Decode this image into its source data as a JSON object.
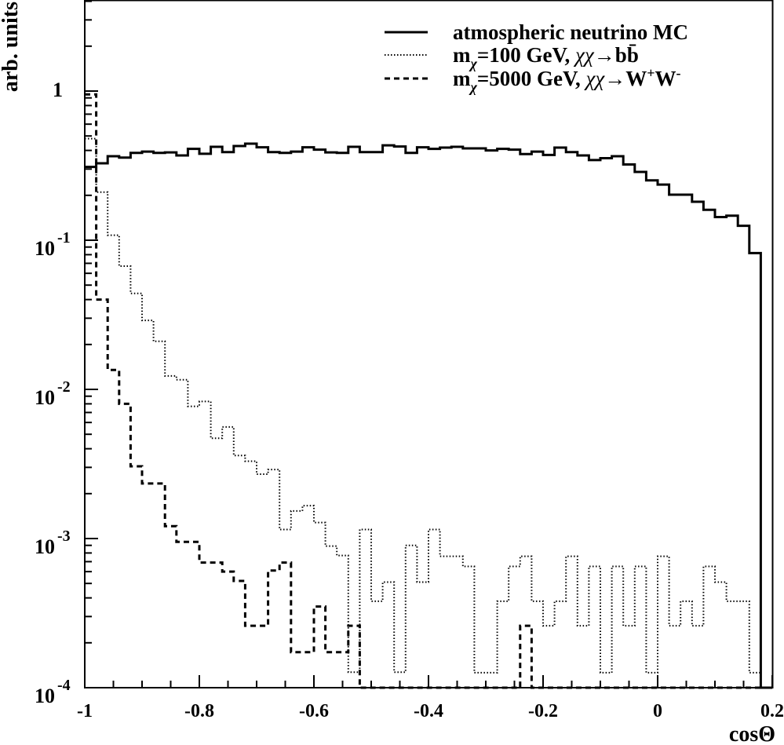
{
  "chart_data": {
    "type": "histogram",
    "title": "",
    "xlabel": "cosΘ",
    "ylabel": "arb. units",
    "xlim": [
      -1,
      0.2
    ],
    "ylim": [
      0.0001,
      4.0
    ],
    "yscale": "log",
    "bin_width": 0.02,
    "bin_start": -1,
    "x_tick_labels": [
      "-1",
      "-0.8",
      "-0.6",
      "-0.4",
      "-0.2",
      "0",
      "0.2"
    ],
    "x_tick_values": [
      -1,
      -0.8,
      -0.6,
      -0.4,
      -0.2,
      0,
      0.2
    ],
    "y_tick_labels": [
      {
        "value": 1,
        "base": "1",
        "exp": ""
      },
      {
        "value": 0.1,
        "base": "10",
        "exp": "-1"
      },
      {
        "value": 0.01,
        "base": "10",
        "exp": "-2"
      },
      {
        "value": 0.001,
        "base": "10",
        "exp": "-3"
      },
      {
        "value": 0.0001,
        "base": "10",
        "exp": "-4"
      }
    ],
    "legend_position": "top-right",
    "series": [
      {
        "name": "atmospheric neutrino MC",
        "style": "solid",
        "color": "#000000",
        "legend_parts": [
          {
            "t": "atmospheric neutrino MC",
            "k": "n"
          }
        ],
        "values": [
          0.31,
          0.328,
          0.366,
          0.358,
          0.385,
          0.393,
          0.385,
          0.388,
          0.37,
          0.41,
          0.38,
          0.423,
          0.39,
          0.428,
          0.444,
          0.42,
          0.39,
          0.385,
          0.393,
          0.42,
          0.405,
          0.388,
          0.385,
          0.423,
          0.39,
          0.39,
          0.433,
          0.425,
          0.385,
          0.42,
          0.41,
          0.418,
          0.423,
          0.413,
          0.413,
          0.4,
          0.41,
          0.405,
          0.378,
          0.393,
          0.373,
          0.418,
          0.39,
          0.37,
          0.345,
          0.355,
          0.366,
          0.322,
          0.287,
          0.252,
          0.236,
          0.202,
          0.202,
          0.181,
          0.16,
          0.143,
          0.146,
          0.125,
          0.082,
          0
        ]
      },
      {
        "name": "mχ=100 GeV, χχ→bb̄",
        "style": "dotted",
        "color": "#000000",
        "legend_parts": [
          {
            "t": "m",
            "k": "n"
          },
          {
            "t": "χ",
            "k": "sub"
          },
          {
            "t": "=100 GeV, ",
            "k": "n"
          },
          {
            "t": "χχ",
            "k": "it"
          },
          {
            "t": "→b",
            "k": "n"
          },
          {
            "t": "b̄",
            "k": "n"
          }
        ],
        "values": [
          0.48,
          0.21,
          0.108,
          0.067,
          0.044,
          0.029,
          0.021,
          0.0123,
          0.0116,
          0.0077,
          0.0083,
          0.0047,
          0.0056,
          0.0036,
          0.0033,
          0.0027,
          0.0029,
          0.00115,
          0.00153,
          0.00166,
          0.00128,
          0.00089,
          0.00077,
          0.000127,
          0.00115,
          0.00038,
          0.00051,
          0.000127,
          0.0009,
          0.00051,
          0.00115,
          0.00076,
          0.00076,
          0.00065,
          0.000126,
          0.000126,
          0.00038,
          0.00065,
          0.00076,
          0.00038,
          0.00026,
          0.00038,
          0.00076,
          0.00026,
          0.00065,
          0.000126,
          0.00065,
          0.00026,
          0.00065,
          0.000126,
          0.00076,
          0.00026,
          0.00038,
          0.00026,
          0.00065,
          0.00051,
          0.00038,
          0.00038,
          0.000126,
          0
        ]
      },
      {
        "name": "mχ=5000 GeV, χχ→W⁺W⁻",
        "style": "dashed",
        "color": "#000000",
        "legend_parts": [
          {
            "t": "m",
            "k": "n"
          },
          {
            "t": "χ",
            "k": "sub"
          },
          {
            "t": "=5000 GeV, ",
            "k": "n"
          },
          {
            "t": "χχ",
            "k": "it"
          },
          {
            "t": "→W",
            "k": "n"
          },
          {
            "t": "+",
            "k": "sup"
          },
          {
            "t": "W",
            "k": "n"
          },
          {
            "t": "-",
            "k": "sup"
          }
        ],
        "values": [
          0.95,
          0.04,
          0.0135,
          0.008,
          0.00305,
          0.00234,
          0.00234,
          0.00121,
          0.00095,
          0.00095,
          0.00069,
          0.00069,
          0.0006,
          0.00052,
          0.00026,
          0.00026,
          0.00061,
          0.00069,
          0.000173,
          0.000173,
          0.00035,
          0.000173,
          0.000173,
          0.00026,
          0,
          0,
          0,
          0,
          0,
          0,
          0,
          0,
          0,
          0,
          0,
          0,
          0,
          0,
          0.00026,
          0,
          0,
          0,
          0,
          0,
          0,
          0,
          0,
          0,
          0,
          0,
          0,
          0,
          0,
          0,
          0,
          0,
          0,
          0,
          0,
          0
        ]
      }
    ]
  }
}
